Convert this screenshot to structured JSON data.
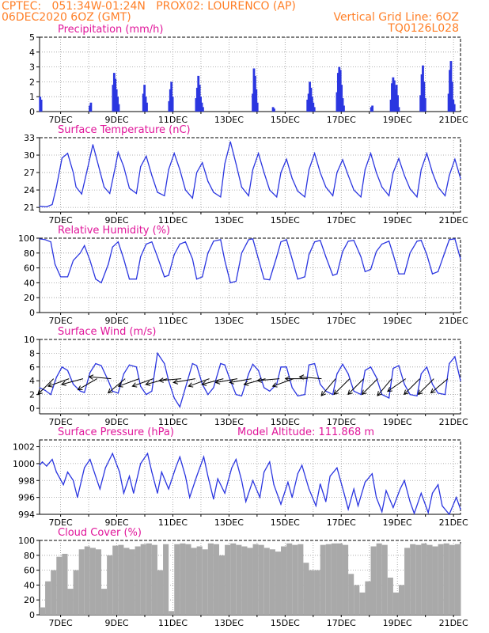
{
  "header": {
    "line1": "CPTEC:   051:34W-01:24N   PROX02: LOURENCO (AP)",
    "line2_left": "06DEC2020 6OZ (GMT)",
    "line2_right": "Vertical Grid Line: 6OZ",
    "line3_right": "TQ0126L028"
  },
  "colors": {
    "header": "#ff7f27",
    "panel_title": "#e0169a",
    "series": "#2b36e0",
    "precip_bar": "#2b36e0",
    "cloud_fill": "#a9a9a9",
    "wind_arrow": "#000000"
  },
  "x_ticks": [
    "7DEC",
    "9DEC",
    "11DEC",
    "13DEC",
    "15DEC",
    "17DEC",
    "19DEC",
    "21DEC"
  ],
  "x_tick_day_offsets": [
    0.75,
    2.75,
    4.75,
    6.75,
    8.75,
    10.75,
    12.75,
    14.75
  ],
  "chart_data": [
    {
      "type": "bar",
      "title": "Precipitation (mm/h)",
      "ylim": [
        0,
        5
      ],
      "yticks": [
        0,
        1,
        2,
        3,
        4,
        5
      ],
      "grid": true,
      "x": [
        0.02,
        0.06,
        1.79,
        1.83,
        2.62,
        2.66,
        2.7,
        2.74,
        2.78,
        2.82,
        3.7,
        3.74,
        3.78,
        3.82,
        4.62,
        4.66,
        4.7,
        4.74,
        5.58,
        5.62,
        5.66,
        5.7,
        5.74,
        5.78,
        5.82,
        7.6,
        7.64,
        7.68,
        7.72,
        7.76,
        8.32,
        8.36,
        9.55,
        9.59,
        9.63,
        9.67,
        9.71,
        9.75,
        9.79,
        10.6,
        10.64,
        10.68,
        10.72,
        10.76,
        10.8,
        10.84,
        11.82,
        11.86,
        12.52,
        12.56,
        12.6,
        12.64,
        12.68,
        12.72,
        12.76,
        12.8,
        13.58,
        13.62,
        13.66,
        13.7,
        13.74,
        14.58,
        14.62,
        14.66,
        14.7,
        14.74,
        14.78
      ],
      "values": [
        1.0,
        0.8,
        0.4,
        0.6,
        1.8,
        2.6,
        2.2,
        1.5,
        1.0,
        0.5,
        1.2,
        1.8,
        1.0,
        0.6,
        0.7,
        1.5,
        2.0,
        1.0,
        0.9,
        1.6,
        2.4,
        1.8,
        1.0,
        0.6,
        0.3,
        1.2,
        2.9,
        2.4,
        1.5,
        0.6,
        0.3,
        0.2,
        0.8,
        1.2,
        2.0,
        1.6,
        1.0,
        0.6,
        0.3,
        1.3,
        2.6,
        3.0,
        2.8,
        1.8,
        0.9,
        0.4,
        0.3,
        0.4,
        0.8,
        1.9,
        2.3,
        2.1,
        1.5,
        1.8,
        1.1,
        0.3,
        1.1,
        2.5,
        3.1,
        2.0,
        0.9,
        1.2,
        2.8,
        3.4,
        2.0,
        0.8,
        0.5
      ]
    },
    {
      "type": "line",
      "title": "Surface Temperature (nC)",
      "ylim": [
        20.2,
        33
      ],
      "yticks": [
        21,
        24,
        27,
        30,
        33
      ],
      "grid": true,
      "x": [
        0.0,
        0.25,
        0.45,
        0.6,
        0.8,
        1.0,
        1.2,
        1.3,
        1.5,
        1.7,
        1.9,
        2.0,
        2.3,
        2.5,
        2.7,
        2.8,
        3.0,
        3.2,
        3.45,
        3.6,
        3.8,
        4.0,
        4.2,
        4.45,
        4.6,
        4.8,
        5.0,
        5.2,
        5.45,
        5.6,
        5.8,
        6.0,
        6.2,
        6.45,
        6.6,
        6.8,
        7.0,
        7.2,
        7.45,
        7.6,
        7.8,
        8.0,
        8.2,
        8.45,
        8.6,
        8.8,
        9.0,
        9.2,
        9.45,
        9.6,
        9.8,
        10.0,
        10.2,
        10.45,
        10.6,
        10.8,
        11.0,
        11.2,
        11.45,
        11.6,
        11.8,
        12.0,
        12.2,
        12.45,
        12.6,
        12.8,
        13.0,
        13.2,
        13.45,
        13.6,
        13.8,
        14.0,
        14.2,
        14.45,
        14.6,
        14.8,
        15.0
      ],
      "values": [
        21.2,
        21.1,
        21.5,
        24.5,
        29.5,
        30.3,
        27.0,
        24.5,
        23.3,
        27.5,
        31.8,
        30.0,
        24.5,
        23.4,
        28.0,
        30.5,
        28.0,
        24.3,
        23.4,
        28.0,
        29.8,
        26.5,
        23.6,
        23.0,
        27.5,
        30.3,
        27.5,
        24.0,
        22.6,
        27.0,
        28.7,
        25.5,
        23.6,
        22.8,
        28.5,
        32.3,
        28.5,
        24.5,
        23.0,
        27.5,
        30.3,
        27.0,
        24.0,
        22.8,
        27.0,
        29.3,
        26.0,
        23.8,
        22.8,
        27.5,
        30.3,
        27.0,
        24.5,
        23.0,
        27.0,
        29.2,
        26.5,
        24.0,
        22.8,
        27.5,
        30.3,
        27.0,
        24.5,
        23.0,
        27.0,
        29.4,
        26.5,
        24.2,
        22.8,
        27.5,
        30.3,
        27.0,
        24.5,
        23.0,
        26.5,
        29.3,
        26.0
      ]
    },
    {
      "type": "line",
      "title": "Relative Humidity (%)",
      "ylim": [
        0,
        100
      ],
      "yticks": [
        0,
        20,
        40,
        60,
        80,
        100
      ],
      "grid": true,
      "x": [
        0.0,
        0.2,
        0.4,
        0.55,
        0.75,
        1.0,
        1.2,
        1.45,
        1.6,
        1.8,
        2.0,
        2.2,
        2.45,
        2.6,
        2.8,
        3.0,
        3.2,
        3.45,
        3.6,
        3.8,
        4.0,
        4.2,
        4.45,
        4.6,
        4.8,
        5.0,
        5.2,
        5.45,
        5.6,
        5.8,
        6.0,
        6.2,
        6.45,
        6.6,
        6.8,
        7.0,
        7.2,
        7.45,
        7.6,
        7.8,
        8.0,
        8.2,
        8.45,
        8.6,
        8.8,
        9.0,
        9.2,
        9.45,
        9.6,
        9.8,
        10.0,
        10.2,
        10.45,
        10.6,
        10.8,
        11.0,
        11.2,
        11.45,
        11.6,
        11.8,
        12.0,
        12.2,
        12.45,
        12.6,
        12.8,
        13.0,
        13.2,
        13.45,
        13.6,
        13.8,
        14.0,
        14.2,
        14.45,
        14.6,
        14.8,
        15.0
      ],
      "values": [
        99,
        98,
        95,
        65,
        48,
        48,
        70,
        80,
        90,
        70,
        45,
        40,
        65,
        88,
        95,
        72,
        45,
        45,
        75,
        92,
        95,
        75,
        48,
        50,
        78,
        92,
        95,
        72,
        45,
        48,
        80,
        96,
        98,
        70,
        40,
        42,
        80,
        98,
        99,
        72,
        45,
        44,
        75,
        95,
        98,
        72,
        45,
        48,
        78,
        95,
        97,
        75,
        50,
        52,
        82,
        96,
        97,
        75,
        55,
        58,
        82,
        92,
        96,
        78,
        52,
        52,
        80,
        96,
        97,
        78,
        52,
        55,
        82,
        98,
        99,
        72
      ]
    },
    {
      "type": "line",
      "title": "Surface Wind (m/s)",
      "ylim": [
        -0.8,
        10
      ],
      "yticks": [
        0,
        2,
        4,
        6,
        8,
        10
      ],
      "grid": true,
      "x": [
        0.0,
        0.2,
        0.4,
        0.6,
        0.8,
        1.0,
        1.2,
        1.45,
        1.6,
        1.8,
        2.0,
        2.2,
        2.45,
        2.6,
        2.8,
        3.0,
        3.2,
        3.45,
        3.6,
        3.8,
        4.0,
        4.2,
        4.45,
        4.6,
        4.8,
        5.0,
        5.2,
        5.45,
        5.6,
        5.8,
        6.0,
        6.2,
        6.45,
        6.6,
        6.8,
        7.0,
        7.2,
        7.45,
        7.6,
        7.8,
        8.0,
        8.2,
        8.45,
        8.6,
        8.8,
        9.0,
        9.2,
        9.45,
        9.6,
        9.8,
        10.0,
        10.2,
        10.45,
        10.6,
        10.8,
        11.0,
        11.2,
        11.45,
        11.6,
        11.8,
        12.0,
        12.2,
        12.45,
        12.6,
        12.8,
        13.0,
        13.2,
        13.45,
        13.6,
        13.8,
        14.0,
        14.2,
        14.45,
        14.6,
        14.8,
        15.0
      ],
      "values": [
        3.0,
        2.6,
        2.0,
        4.5,
        6.0,
        5.5,
        3.5,
        2.5,
        2.3,
        5.2,
        6.5,
        6.2,
        4.0,
        2.5,
        2.2,
        5.0,
        6.3,
        6.0,
        3.2,
        2.0,
        2.5,
        8.0,
        6.5,
        4.0,
        1.5,
        0.2,
        3.0,
        6.5,
        6.2,
        3.5,
        2.0,
        3.0,
        6.5,
        6.3,
        4.0,
        2.0,
        1.8,
        5.0,
        6.4,
        5.5,
        3.0,
        2.5,
        3.5,
        6.0,
        6.0,
        3.0,
        1.8,
        2.0,
        6.3,
        6.5,
        3.5,
        2.5,
        2.0,
        5.0,
        6.4,
        5.0,
        2.5,
        2.0,
        5.5,
        6.0,
        4.5,
        2.0,
        1.5,
        5.8,
        6.2,
        3.5,
        2.0,
        1.8,
        5.0,
        6.0,
        3.5,
        2.2,
        2.0,
        6.5,
        7.5,
        4.0
      ]
    },
    {
      "type": "line",
      "title": "Surface Pressure (hPa)",
      "annotation": "Model Altitude: 111.868 m",
      "ylim": [
        994,
        1002.8
      ],
      "yticks": [
        994,
        996,
        998,
        1000,
        1002
      ],
      "grid": true,
      "x": [
        0.0,
        0.1,
        0.25,
        0.45,
        0.6,
        0.85,
        1.0,
        1.2,
        1.35,
        1.6,
        1.8,
        2.0,
        2.15,
        2.35,
        2.6,
        2.85,
        3.0,
        3.2,
        3.35,
        3.6,
        3.85,
        4.0,
        4.2,
        4.35,
        4.6,
        4.85,
        5.0,
        5.2,
        5.35,
        5.6,
        5.85,
        6.0,
        6.2,
        6.35,
        6.6,
        6.85,
        7.0,
        7.2,
        7.35,
        7.6,
        7.85,
        8.0,
        8.2,
        8.35,
        8.6,
        8.85,
        9.0,
        9.2,
        9.35,
        9.6,
        9.85,
        10.0,
        10.2,
        10.35,
        10.6,
        10.85,
        11.0,
        11.2,
        11.35,
        11.6,
        11.85,
        12.0,
        12.2,
        12.35,
        12.6,
        12.85,
        13.0,
        13.2,
        13.35,
        13.6,
        13.85,
        14.0,
        14.2,
        14.35,
        14.6,
        14.85,
        15.0
      ],
      "values": [
        999.8,
        1000.2,
        999.7,
        1000.5,
        999.0,
        997.5,
        999.0,
        998.0,
        996.0,
        999.5,
        1000.5,
        998.5,
        997.0,
        999.5,
        1001.2,
        999.0,
        996.5,
        998.5,
        996.5,
        1000.0,
        1001.2,
        999.0,
        996.5,
        999.0,
        997.0,
        999.5,
        1000.8,
        998.5,
        996.0,
        998.5,
        1000.8,
        998.5,
        995.8,
        998.2,
        996.5,
        999.5,
        1000.5,
        998.0,
        995.5,
        998.0,
        996.0,
        999.0,
        1000.2,
        997.5,
        995.2,
        997.8,
        996.0,
        998.8,
        999.8,
        997.0,
        995.0,
        997.6,
        995.5,
        998.5,
        999.5,
        996.5,
        994.6,
        997.0,
        995.0,
        997.8,
        998.8,
        996.0,
        994.3,
        996.8,
        994.8,
        997.0,
        998.0,
        995.5,
        994.1,
        996.5,
        994.2,
        996.5,
        997.5,
        995.0,
        994.0,
        996.0,
        994.6
      ]
    },
    {
      "type": "bar",
      "title": "Cloud Cover (%)",
      "ylim": [
        0,
        100
      ],
      "yticks": [
        0,
        20,
        40,
        60,
        80,
        100
      ],
      "grid": true,
      "x": [
        0.0,
        0.2,
        0.4,
        0.6,
        0.8,
        1.0,
        1.2,
        1.4,
        1.6,
        1.8,
        2.0,
        2.2,
        2.4,
        2.6,
        2.8,
        3.0,
        3.2,
        3.4,
        3.6,
        3.8,
        4.0,
        4.2,
        4.4,
        4.6,
        4.8,
        5.0,
        5.2,
        5.4,
        5.6,
        5.8,
        6.0,
        6.2,
        6.4,
        6.6,
        6.8,
        7.0,
        7.2,
        7.4,
        7.6,
        7.8,
        8.0,
        8.2,
        8.4,
        8.6,
        8.8,
        9.0,
        9.2,
        9.4,
        9.6,
        9.8,
        10.0,
        10.2,
        10.4,
        10.6,
        10.8,
        11.0,
        11.2,
        11.4,
        11.6,
        11.8,
        12.0,
        12.2,
        12.4,
        12.6,
        12.8,
        13.0,
        13.2,
        13.4,
        13.6,
        13.8,
        14.0,
        14.2,
        14.4,
        14.6,
        14.8,
        15.0
      ],
      "values": [
        10,
        45,
        60,
        78,
        82,
        35,
        60,
        88,
        92,
        90,
        88,
        35,
        80,
        93,
        94,
        90,
        88,
        92,
        95,
        96,
        94,
        60,
        95,
        5,
        95,
        96,
        95,
        90,
        92,
        88,
        96,
        95,
        80,
        94,
        96,
        94,
        92,
        90,
        95,
        94,
        90,
        88,
        85,
        92,
        96,
        94,
        95,
        70,
        60,
        60,
        94,
        95,
        96,
        96,
        94,
        55,
        40,
        30,
        45,
        92,
        96,
        94,
        50,
        30,
        40,
        90,
        95,
        94,
        96,
        94,
        92,
        95,
        96,
        94,
        95,
        96
      ]
    }
  ],
  "wind_arrows": [
    {
      "x": 0.5,
      "dir": 225
    },
    {
      "x": 1.05,
      "dir": 250
    },
    {
      "x": 1.55,
      "dir": 255
    },
    {
      "x": 2.05,
      "dir": 240
    },
    {
      "x": 2.55,
      "dir": 275
    },
    {
      "x": 3.05,
      "dir": 230
    },
    {
      "x": 3.55,
      "dir": 250
    },
    {
      "x": 4.05,
      "dir": 250
    },
    {
      "x": 4.55,
      "dir": 255
    },
    {
      "x": 5.05,
      "dir": 265
    },
    {
      "x": 5.55,
      "dir": 260
    },
    {
      "x": 6.05,
      "dir": 250
    },
    {
      "x": 6.55,
      "dir": 255
    },
    {
      "x": 7.05,
      "dir": 260
    },
    {
      "x": 7.55,
      "dir": 260
    },
    {
      "x": 8.05,
      "dir": 255
    },
    {
      "x": 8.55,
      "dir": 265
    },
    {
      "x": 9.05,
      "dir": 250
    },
    {
      "x": 9.55,
      "dir": 270
    },
    {
      "x": 10.05,
      "dir": 275
    },
    {
      "x": 10.55,
      "dir": 220
    },
    {
      "x": 11.05,
      "dir": 225
    },
    {
      "x": 11.55,
      "dir": 225
    },
    {
      "x": 12.05,
      "dir": 225
    },
    {
      "x": 12.55,
      "dir": 220
    },
    {
      "x": 13.05,
      "dir": 235
    },
    {
      "x": 13.55,
      "dir": 225
    },
    {
      "x": 14.05,
      "dir": 225
    },
    {
      "x": 14.55,
      "dir": 230
    }
  ]
}
